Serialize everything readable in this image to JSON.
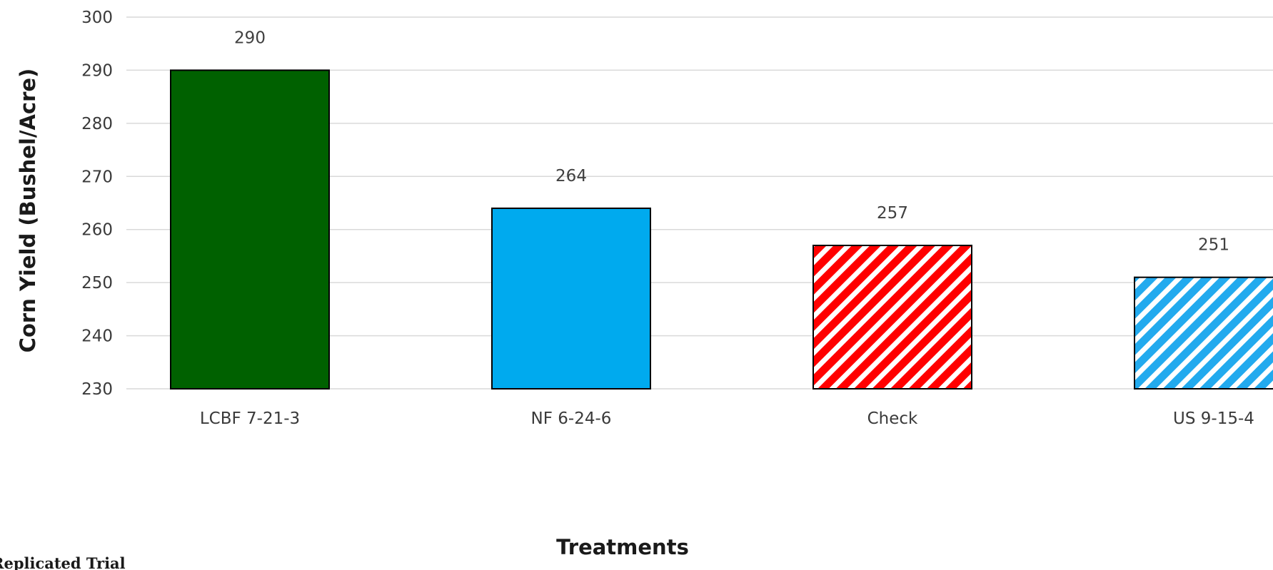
{
  "chart_data": {
    "type": "bar",
    "categories": [
      "LCBF 7-21-3",
      "NF 6-24-6",
      "Check",
      "US 9-15-4"
    ],
    "values": [
      290,
      264,
      257,
      251
    ],
    "value_labels": [
      "290",
      "264",
      "257",
      "251"
    ],
    "title": "",
    "xlabel": "Treatments",
    "ylabel": "Corn Yield (Bushel/Acre)",
    "ylim": [
      230,
      300
    ],
    "yticks": [
      230,
      240,
      250,
      260,
      270,
      280,
      290,
      300
    ],
    "grid": true,
    "bar_styles": [
      {
        "fill": "#006100",
        "pattern": "solid"
      },
      {
        "fill": "#00aaee",
        "pattern": "solid"
      },
      {
        "fill": "#ff0000",
        "pattern": "diagonal-stripes",
        "stripe": "#ffffff"
      },
      {
        "fill": "#22aaee",
        "pattern": "diagonal-stripes",
        "stripe": "#ffffff"
      }
    ],
    "gridline_color": "#d9d9d9",
    "bar_outline_color": "#000000"
  },
  "footnote": "Replicated Trial"
}
